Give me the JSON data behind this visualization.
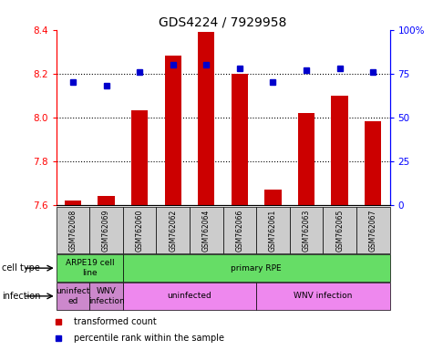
{
  "title": "GDS4224 / 7929958",
  "samples": [
    "GSM762068",
    "GSM762069",
    "GSM762060",
    "GSM762062",
    "GSM762064",
    "GSM762066",
    "GSM762061",
    "GSM762063",
    "GSM762065",
    "GSM762067"
  ],
  "transformed_counts": [
    7.62,
    7.64,
    8.03,
    8.28,
    8.39,
    8.2,
    7.67,
    8.02,
    8.1,
    7.98
  ],
  "percentile_ranks": [
    70,
    68,
    76,
    80,
    80,
    78,
    70,
    77,
    78,
    76
  ],
  "ylim_left": [
    7.6,
    8.4
  ],
  "ylim_right": [
    0,
    100
  ],
  "yticks_left": [
    7.6,
    7.8,
    8.0,
    8.2,
    8.4
  ],
  "yticks_right": [
    0,
    25,
    50,
    75,
    100
  ],
  "ytick_labels_right": [
    "0",
    "25",
    "50",
    "75",
    "100%"
  ],
  "bar_color": "#cc0000",
  "dot_color": "#0000cc",
  "bar_width": 0.5,
  "cell_type_row": [
    {
      "label": "ARPE19 cell\nline",
      "color": "#66dd66",
      "start": 0,
      "end": 2
    },
    {
      "label": "primary RPE",
      "color": "#66dd66",
      "start": 2,
      "end": 10
    }
  ],
  "infection_row": [
    {
      "label": "uninfect\ned",
      "color": "#cc88cc",
      "start": 0,
      "end": 1
    },
    {
      "label": "WNV\ninfection",
      "color": "#cc88cc",
      "start": 1,
      "end": 2
    },
    {
      "label": "uninfected",
      "color": "#ee88ee",
      "start": 2,
      "end": 6
    },
    {
      "label": "WNV infection",
      "color": "#ee88ee",
      "start": 6,
      "end": 10
    }
  ],
  "legend_items": [
    {
      "color": "#cc0000",
      "label": "transformed count"
    },
    {
      "color": "#0000cc",
      "label": "percentile rank within the sample"
    }
  ],
  "cell_type_text": "cell type",
  "infection_text": "infection",
  "hgrid_lines": [
    7.8,
    8.0,
    8.2
  ]
}
